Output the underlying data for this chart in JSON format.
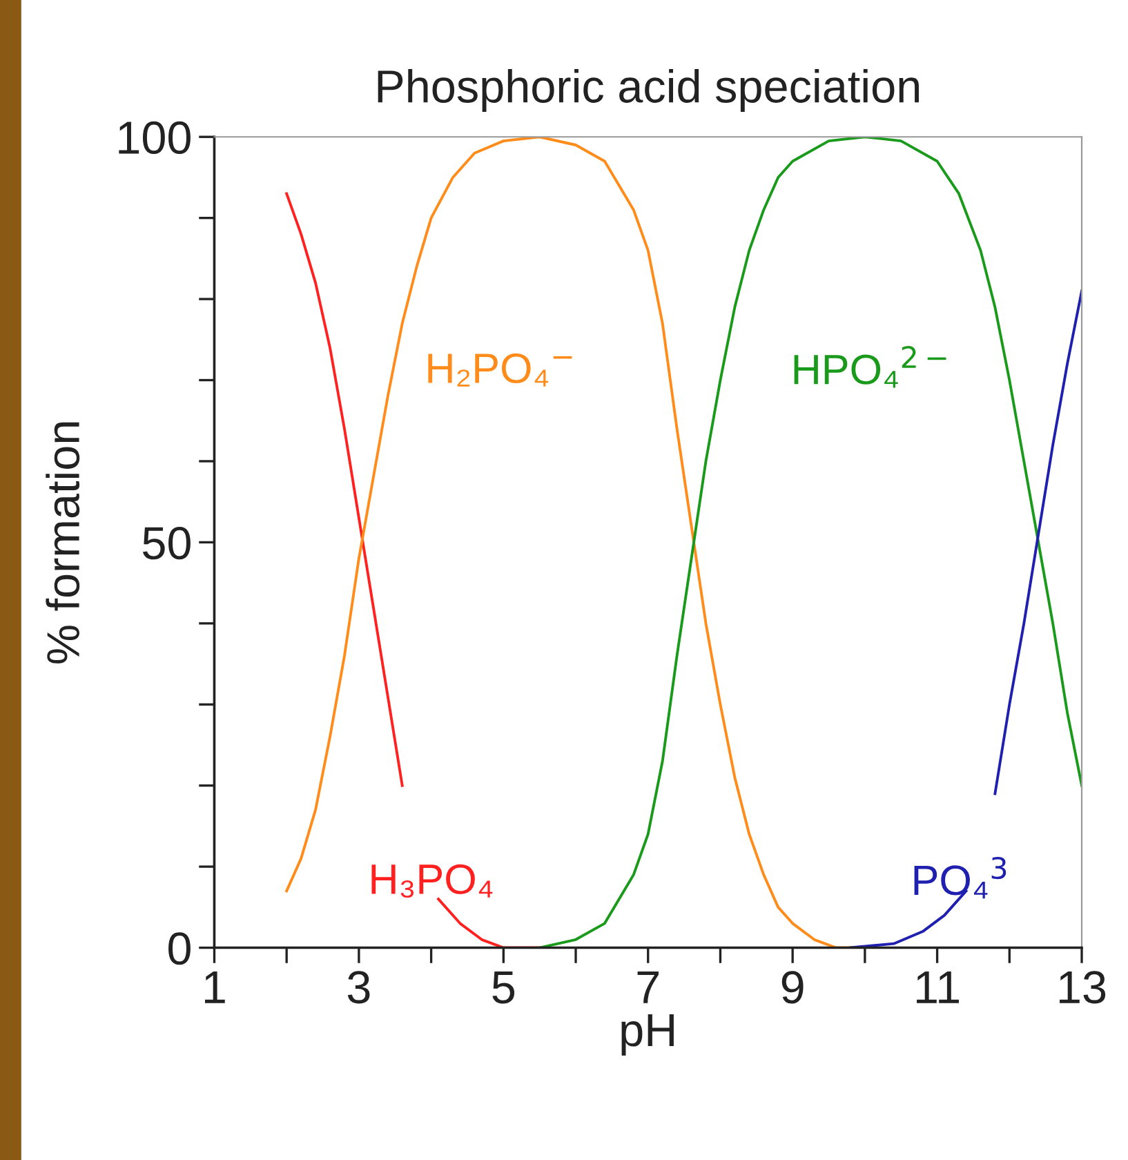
{
  "chart_data": {
    "type": "line",
    "title": "Phosphoric acid speciation",
    "xlabel": "pH",
    "ylabel": "% formation",
    "xlim": [
      1,
      13
    ],
    "ylim": [
      0,
      100
    ],
    "xticks": [
      1,
      {
        "value": 2,
        "label": null
      },
      3,
      {
        "value": 4,
        "label": null
      },
      5,
      {
        "value": 6,
        "label": null
      },
      7,
      {
        "value": 8,
        "label": null
      },
      9,
      {
        "value": 10,
        "label": null
      },
      11,
      {
        "value": 12,
        "label": null
      },
      13
    ],
    "yticks": [
      0,
      {
        "value": 10,
        "label": null
      },
      {
        "value": 20,
        "label": null
      },
      {
        "value": 30,
        "label": null
      },
      {
        "value": 40,
        "label": null
      },
      50,
      {
        "value": 60,
        "label": null
      },
      {
        "value": 70,
        "label": null
      },
      {
        "value": 80,
        "label": null
      },
      {
        "value": 90,
        "label": null
      },
      100
    ],
    "grid": false,
    "legend": false,
    "marker": "none",
    "line_style": "solid",
    "series": [
      {
        "name": "H₃PO₄",
        "color": "#ff2020",
        "x": [
          2.0,
          2.2,
          2.4,
          2.6,
          2.8,
          3.0,
          3.2,
          3.4,
          3.6,
          3.85,
          4.1,
          4.4,
          4.7,
          5.0,
          5.5
        ],
        "values": [
          93,
          88,
          82,
          74,
          64,
          53,
          42,
          31,
          20,
          null,
          6,
          3,
          1,
          0,
          0
        ]
      },
      {
        "name": "H₂PO₄$^{−}$",
        "color": "#ff8c1a",
        "x": [
          2.0,
          2.2,
          2.4,
          2.6,
          2.8,
          3.0,
          3.2,
          3.4,
          3.6,
          3.8,
          4.0,
          4.3,
          4.6,
          5.0,
          5.5,
          6.0,
          6.4,
          6.8,
          7.0,
          7.2,
          7.4,
          7.6,
          7.8,
          8.0,
          8.2,
          8.4,
          8.6,
          8.8,
          9.0,
          9.3,
          9.6,
          10.0
        ],
        "values": [
          7,
          11,
          17,
          26,
          36,
          48,
          58,
          68,
          77,
          84,
          90,
          95,
          98,
          99.5,
          100,
          99,
          97,
          91,
          86,
          77,
          64,
          52,
          40,
          30,
          21,
          14,
          9,
          5,
          3,
          1,
          0,
          0
        ]
      },
      {
        "name": "HPO₄$^{2−}$",
        "color": "#1a9a1a",
        "x": [
          5.5,
          6.0,
          6.4,
          6.8,
          7.0,
          7.2,
          7.4,
          7.6,
          7.8,
          8.0,
          8.2,
          8.4,
          8.6,
          8.8,
          9.0,
          9.5,
          10.0,
          10.5,
          11.0,
          11.3,
          11.6,
          11.8,
          12.0,
          12.2,
          12.4,
          12.6,
          12.8,
          13.0
        ],
        "values": [
          0,
          1,
          3,
          9,
          14,
          23,
          36,
          48,
          60,
          70,
          79,
          86,
          91,
          95,
          97,
          99.5,
          100,
          99.5,
          97,
          93,
          86,
          79,
          70,
          60,
          50,
          40,
          29,
          20
        ]
      },
      {
        "name": "PO₄$^{3}$",
        "color": "#2020b0",
        "x": [
          9.8,
          10.4,
          10.8,
          11.1,
          11.4,
          11.6,
          11.8,
          12.0,
          12.2,
          12.4,
          12.6,
          12.8,
          13.0
        ],
        "values": [
          0,
          0.5,
          2,
          4,
          7,
          null,
          19,
          30,
          40,
          51,
          62,
          72,
          81
        ]
      }
    ]
  }
}
